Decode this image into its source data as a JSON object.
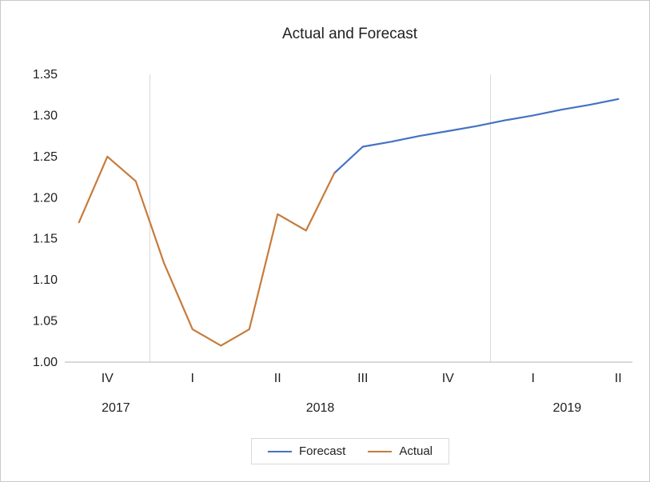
{
  "chart_data": {
    "type": "line",
    "title": "Actual and Forecast",
    "y_axis": {
      "min": 1.0,
      "max": 1.35,
      "tick_step": 0.05,
      "tick_labels": [
        "1.00",
        "1.05",
        "1.10",
        "1.15",
        "1.20",
        "1.25",
        "1.30",
        "1.35"
      ]
    },
    "x_axis": {
      "points_per_quarter": 3,
      "quarter_ticks": [
        {
          "label": "IV",
          "center_index": 1
        },
        {
          "label": "I",
          "center_index": 4
        },
        {
          "label": "II",
          "center_index": 7
        },
        {
          "label": "III",
          "center_index": 10
        },
        {
          "label": "IV",
          "center_index": 13
        },
        {
          "label": "I",
          "center_index": 16
        },
        {
          "label": "II",
          "center_index": 19
        }
      ],
      "year_labels": [
        {
          "label": "2017",
          "center_index": 1.3
        },
        {
          "label": "2018",
          "center_index": 8.5
        },
        {
          "label": "2019",
          "center_index": 17.2
        }
      ],
      "year_separators_after_index": [
        2,
        14
      ]
    },
    "series": [
      {
        "name": "Forecast",
        "color": "#4472C4",
        "values": [
          null,
          null,
          null,
          null,
          null,
          null,
          null,
          null,
          null,
          1.23,
          1.262,
          1.268,
          1.275,
          1.281,
          1.287,
          1.294,
          1.3,
          1.307,
          1.313,
          1.32
        ]
      },
      {
        "name": "Actual",
        "color": "#C77B3B",
        "values": [
          1.17,
          1.25,
          1.22,
          1.12,
          1.04,
          1.02,
          1.04,
          1.18,
          1.16,
          1.23,
          null,
          null,
          null,
          null,
          null,
          null,
          null,
          null,
          null,
          null
        ]
      }
    ],
    "grid": {
      "vertical_year_lines": true,
      "horizontal_lines": false
    },
    "legend_position": "bottom",
    "colors": {
      "gridline": "#D9D9D9",
      "axis_line": "#B3B3B3",
      "text": "#1f1f1f"
    }
  }
}
